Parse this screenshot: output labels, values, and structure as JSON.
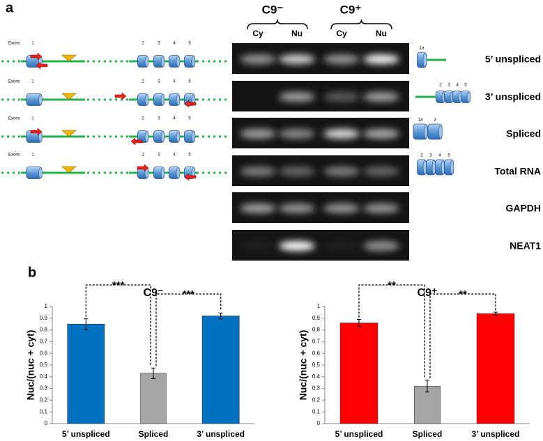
{
  "panel_a": {
    "label": "a",
    "groups": [
      "C9⁻",
      "C9⁺"
    ],
    "lanes": [
      "Cy",
      "Nu",
      "Cy",
      "Nu"
    ],
    "rows": [
      "5’ unspliced",
      "3’ unspliced",
      "Spliced",
      "Total RNA",
      "GAPDH",
      "NEAT1"
    ],
    "exons_label": "Exons",
    "exon_numbers": [
      "1",
      "2",
      "3",
      "4",
      "5"
    ],
    "product_labels": [
      [
        "1a"
      ],
      [
        "2",
        "3",
        "4",
        "5"
      ],
      [
        "1a",
        "2"
      ],
      [
        "2",
        "3",
        "4",
        "5"
      ]
    ]
  },
  "panel_b_label": "b",
  "chart_data": [
    {
      "type": "bar",
      "title": "C9⁻",
      "ylabel": "Nuc/(nuc + cyt)",
      "categories": [
        "5’ unspliced",
        "Spliced",
        "3’ unspliced"
      ],
      "values": [
        0.85,
        0.43,
        0.92
      ],
      "errors": [
        0.045,
        0.045,
        0.025
      ],
      "colors": [
        "#0070c0",
        "#a6a6a6",
        "#0070c0"
      ],
      "significance": [
        "***",
        "***"
      ],
      "ylim": [
        0,
        1
      ],
      "yticks": [
        0,
        0.1,
        0.2,
        0.3,
        0.4,
        0.5,
        0.6,
        0.7,
        0.8,
        0.9,
        1
      ]
    },
    {
      "type": "bar",
      "title": "C9⁺",
      "ylabel": "Nuc/(nuc + cyt)",
      "categories": [
        "5’ unspliced",
        "Spliced",
        "3’ unspliced"
      ],
      "values": [
        0.86,
        0.32,
        0.94
      ],
      "errors": [
        0.03,
        0.05,
        0.012
      ],
      "colors": [
        "#ff0000",
        "#a6a6a6",
        "#ff0000"
      ],
      "significance": [
        "**",
        "**"
      ],
      "ylim": [
        0,
        1
      ],
      "yticks": [
        0,
        0.1,
        0.2,
        0.3,
        0.4,
        0.5,
        0.6,
        0.7,
        0.8,
        0.9,
        1
      ]
    }
  ]
}
